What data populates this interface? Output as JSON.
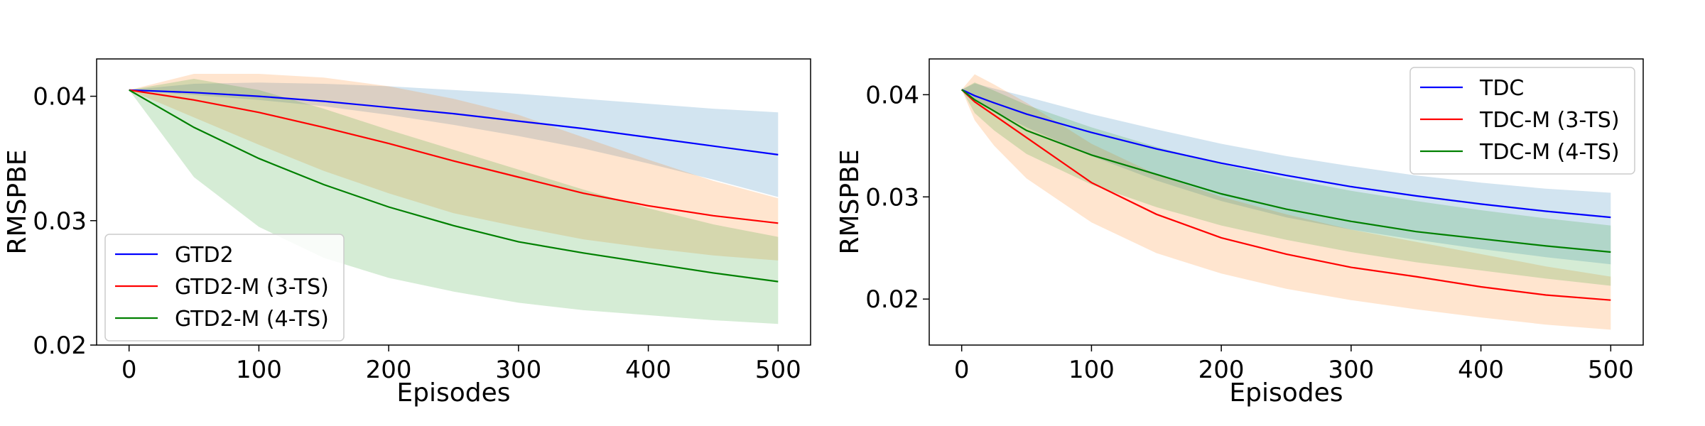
{
  "chart_data": [
    {
      "type": "line",
      "xlabel": "Episodes",
      "ylabel": "RMSPBE",
      "xlim": [
        -25,
        525
      ],
      "ylim": [
        0.02,
        0.043
      ],
      "xticks": [
        0,
        100,
        200,
        300,
        400,
        500
      ],
      "xtick_labels": [
        "0",
        "100",
        "200",
        "300",
        "400",
        "500"
      ],
      "yticks": [
        0.02,
        0.03,
        0.04
      ],
      "ytick_labels": [
        "0.02",
        "0.03",
        "0.04"
      ],
      "legend_position": "lower-left",
      "x": [
        0,
        50,
        100,
        150,
        200,
        250,
        300,
        350,
        400,
        450,
        500
      ],
      "series": [
        {
          "name": "GTD2",
          "color": "#0000ff",
          "band_color": "#1f77b4",
          "values": [
            0.0405,
            0.0403,
            0.04,
            0.0396,
            0.0391,
            0.0386,
            0.038,
            0.0374,
            0.0367,
            0.036,
            0.0353
          ],
          "lower": [
            0.0405,
            0.0401,
            0.0397,
            0.0392,
            0.0385,
            0.0377,
            0.0368,
            0.0358,
            0.0346,
            0.0333,
            0.0319
          ],
          "upper": [
            0.0405,
            0.041,
            0.0411,
            0.041,
            0.0408,
            0.0405,
            0.0402,
            0.0398,
            0.0394,
            0.039,
            0.0387
          ]
        },
        {
          "name": "GTD2-M (3-TS)",
          "color": "#ff0000",
          "band_color": "#ff7f0e",
          "values": [
            0.0405,
            0.0397,
            0.0387,
            0.0375,
            0.0362,
            0.0348,
            0.0335,
            0.0322,
            0.0312,
            0.0304,
            0.0298
          ],
          "lower": [
            0.0405,
            0.0383,
            0.0361,
            0.034,
            0.0322,
            0.0306,
            0.0295,
            0.0285,
            0.0278,
            0.0272,
            0.0268
          ],
          "upper": [
            0.0405,
            0.0418,
            0.0418,
            0.0415,
            0.0408,
            0.0398,
            0.0385,
            0.0367,
            0.0349,
            0.0332,
            0.0318
          ]
        },
        {
          "name": "GTD2-M (4-TS)",
          "color": "#008000",
          "band_color": "#2ca02c",
          "values": [
            0.0405,
            0.0375,
            0.035,
            0.0329,
            0.0311,
            0.0296,
            0.0283,
            0.0274,
            0.0266,
            0.0258,
            0.0251
          ],
          "lower": [
            0.0405,
            0.0335,
            0.0295,
            0.027,
            0.0254,
            0.0243,
            0.0234,
            0.0228,
            0.0224,
            0.022,
            0.0217
          ],
          "upper": [
            0.0405,
            0.0414,
            0.0405,
            0.039,
            0.0373,
            0.0357,
            0.0341,
            0.0325,
            0.031,
            0.0297,
            0.0287
          ]
        }
      ]
    },
    {
      "type": "line",
      "xlabel": "Episodes",
      "ylabel": "RMSPBE",
      "xlim": [
        -25,
        525
      ],
      "ylim": [
        0.0155,
        0.0435
      ],
      "xticks": [
        0,
        100,
        200,
        300,
        400,
        500
      ],
      "xtick_labels": [
        "0",
        "100",
        "200",
        "300",
        "400",
        "500"
      ],
      "yticks": [
        0.02,
        0.03,
        0.04
      ],
      "ytick_labels": [
        "0.02",
        "0.03",
        "0.04"
      ],
      "legend_position": "upper-right",
      "x": [
        0,
        10,
        25,
        50,
        100,
        150,
        200,
        250,
        300,
        350,
        400,
        450,
        500
      ],
      "series": [
        {
          "name": "TDC",
          "color": "#0000ff",
          "band_color": "#1f77b4",
          "values": [
            0.0405,
            0.0399,
            0.0392,
            0.0381,
            0.0363,
            0.0347,
            0.0333,
            0.0321,
            0.031,
            0.0301,
            0.0293,
            0.0286,
            0.028
          ],
          "lower": [
            0.0405,
            0.0395,
            0.0384,
            0.0368,
            0.034,
            0.0316,
            0.0296,
            0.028,
            0.0268,
            0.0258,
            0.0249,
            0.0241,
            0.0234
          ],
          "upper": [
            0.0405,
            0.0411,
            0.0406,
            0.0398,
            0.0381,
            0.0366,
            0.0352,
            0.034,
            0.033,
            0.0321,
            0.0314,
            0.0308,
            0.0304
          ]
        },
        {
          "name": "TDC-M (3-TS)",
          "color": "#ff0000",
          "band_color": "#ff7f0e",
          "values": [
            0.0405,
            0.0393,
            0.038,
            0.0358,
            0.0314,
            0.0283,
            0.026,
            0.0244,
            0.0231,
            0.0222,
            0.0212,
            0.0204,
            0.0199
          ],
          "lower": [
            0.0405,
            0.0375,
            0.035,
            0.0318,
            0.0275,
            0.0245,
            0.0225,
            0.021,
            0.0199,
            0.019,
            0.0182,
            0.0175,
            0.017
          ],
          "upper": [
            0.0405,
            0.042,
            0.041,
            0.0392,
            0.0352,
            0.0322,
            0.03,
            0.0283,
            0.0268,
            0.0256,
            0.0244,
            0.0232,
            0.0222
          ]
        },
        {
          "name": "TDC-M (4-TS)",
          "color": "#008000",
          "band_color": "#2ca02c",
          "values": [
            0.0405,
            0.0395,
            0.0384,
            0.0365,
            0.0341,
            0.0322,
            0.0303,
            0.0288,
            0.0276,
            0.0266,
            0.0259,
            0.0252,
            0.0246
          ],
          "lower": [
            0.0405,
            0.0382,
            0.0365,
            0.0342,
            0.0312,
            0.029,
            0.0272,
            0.0258,
            0.0246,
            0.0236,
            0.0228,
            0.022,
            0.0213
          ],
          "upper": [
            0.0405,
            0.0412,
            0.0404,
            0.039,
            0.0368,
            0.0349,
            0.0332,
            0.0318,
            0.0306,
            0.0296,
            0.0287,
            0.0279,
            0.0272
          ]
        }
      ]
    }
  ]
}
